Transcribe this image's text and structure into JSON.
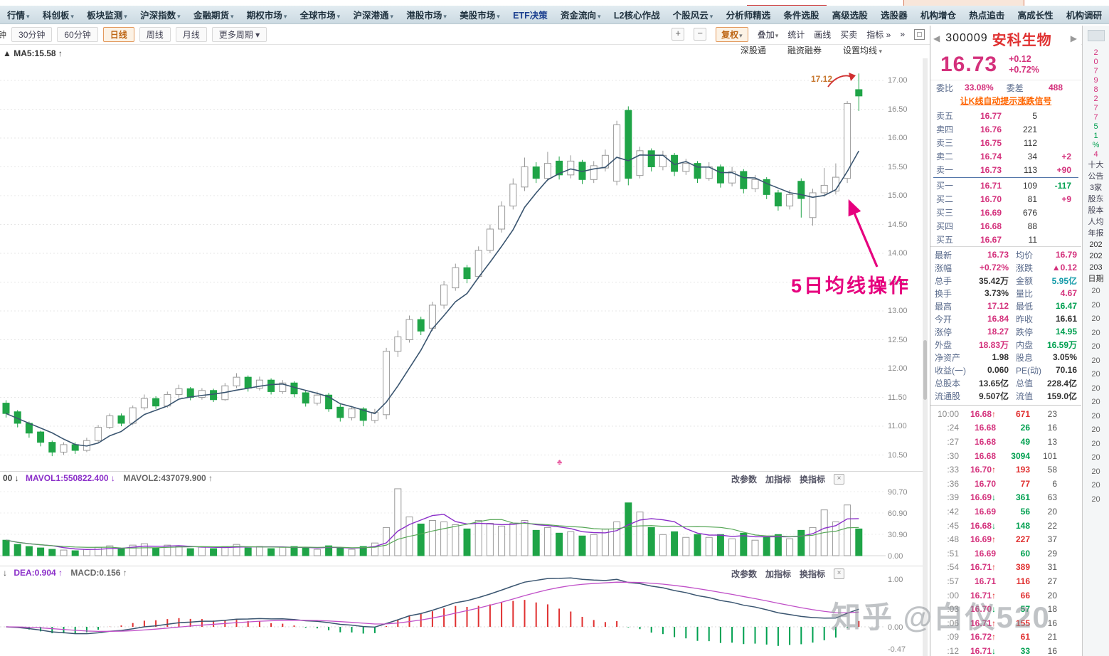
{
  "window": {
    "watermark": "知乎 @白仪520"
  },
  "menu_bar": {
    "items": [
      {
        "label": "行情",
        "arrow": true
      },
      {
        "label": "科创板",
        "arrow": true
      },
      {
        "label": "板块监测",
        "arrow": true
      },
      {
        "label": "沪深指数",
        "arrow": true
      },
      {
        "label": "金融期货",
        "arrow": true
      },
      {
        "label": "期权市场",
        "arrow": true
      },
      {
        "label": "全球市场",
        "arrow": true
      },
      {
        "label": "沪深港通",
        "arrow": true
      },
      {
        "label": "港股市场",
        "arrow": true
      },
      {
        "label": "美股市场",
        "arrow": true
      },
      {
        "label": "ETF决策",
        "arrow": false,
        "color": "#1b3f8f"
      },
      {
        "label": "资金流向",
        "arrow": true
      },
      {
        "label": "L2核心作战",
        "arrow": false
      },
      {
        "label": "个股风云",
        "arrow": true
      },
      {
        "label": "分析师精选",
        "arrow": false
      },
      {
        "label": "条件选股",
        "arrow": false
      },
      {
        "label": "高级选股",
        "arrow": false
      },
      {
        "label": "选股器",
        "arrow": false
      },
      {
        "label": "机构增仓",
        "arrow": false
      },
      {
        "label": "热点追击",
        "arrow": false
      },
      {
        "label": "高成长性",
        "arrow": false
      },
      {
        "label": "机构调研",
        "arrow": false
      }
    ]
  },
  "toolbar": {
    "fragment": "钟",
    "periods": [
      {
        "label": "30分钟",
        "active": false
      },
      {
        "label": "60分钟",
        "active": false
      },
      {
        "label": "日线",
        "active": true
      },
      {
        "label": "周线",
        "active": false
      },
      {
        "label": "月线",
        "active": false
      },
      {
        "label": "更多周期",
        "active": false,
        "arrow": true
      }
    ],
    "zoom_in": "+",
    "zoom_out": "−",
    "right_buttons": [
      {
        "label": "复权",
        "arrow": true,
        "active": true
      },
      {
        "label": "叠加",
        "arrow": true,
        "active": false
      },
      {
        "label": "统计",
        "active": false
      },
      {
        "label": "画线",
        "active": false
      },
      {
        "label": "买卖",
        "active": false
      },
      {
        "label": "指标 »",
        "active": false
      }
    ]
  },
  "chart_links": [
    "深股通",
    "融资融券",
    "设置均线"
  ],
  "main_chart": {
    "ma_label": "▲ MA5:15.58 ↑",
    "high_label": "17.12",
    "annotation": "5日均线操作",
    "marker": "♣",
    "price_top": 17.0,
    "price_bottom": 10.5,
    "y_ticks": [
      "17.00",
      "16.50",
      "16.00",
      "15.50",
      "15.00",
      "14.50",
      "14.00",
      "13.50",
      "13.00",
      "12.50",
      "12.00",
      "11.50",
      "11.00",
      "10.50"
    ],
    "candles": [
      [
        11.4,
        11.22,
        11.15,
        11.45,
        "g"
      ],
      [
        11.25,
        11.05,
        10.98,
        11.28,
        "g"
      ],
      [
        11.05,
        10.88,
        10.8,
        11.08,
        "g"
      ],
      [
        10.9,
        10.72,
        10.65,
        10.92,
        "g"
      ],
      [
        10.72,
        10.55,
        10.48,
        10.75,
        "g"
      ],
      [
        10.55,
        10.68,
        10.5,
        10.72,
        "w"
      ],
      [
        10.68,
        10.58,
        10.52,
        10.72,
        "g"
      ],
      [
        10.58,
        10.75,
        10.55,
        10.8,
        "w"
      ],
      [
        10.75,
        10.98,
        10.72,
        11.02,
        "w"
      ],
      [
        10.98,
        11.18,
        10.95,
        11.22,
        "w"
      ],
      [
        11.18,
        11.05,
        11.0,
        11.22,
        "g"
      ],
      [
        11.05,
        11.32,
        11.02,
        11.36,
        "w"
      ],
      [
        11.32,
        11.48,
        11.28,
        11.55,
        "w"
      ],
      [
        11.48,
        11.35,
        11.3,
        11.52,
        "g"
      ],
      [
        11.35,
        11.55,
        11.32,
        11.6,
        "w"
      ],
      [
        11.55,
        11.65,
        11.5,
        11.72,
        "w"
      ],
      [
        11.65,
        11.5,
        11.45,
        11.68,
        "g"
      ],
      [
        11.5,
        11.62,
        11.46,
        11.66,
        "w"
      ],
      [
        11.62,
        11.46,
        11.42,
        11.65,
        "g"
      ],
      [
        11.46,
        11.7,
        11.44,
        11.75,
        "w"
      ],
      [
        11.7,
        11.85,
        11.66,
        11.92,
        "w"
      ],
      [
        11.85,
        11.66,
        11.6,
        11.88,
        "g"
      ],
      [
        11.66,
        11.8,
        11.62,
        11.86,
        "w"
      ],
      [
        11.8,
        11.6,
        11.55,
        11.83,
        "g"
      ],
      [
        11.6,
        11.75,
        11.56,
        11.8,
        "w"
      ],
      [
        11.75,
        11.56,
        11.5,
        11.78,
        "g"
      ],
      [
        11.58,
        11.4,
        11.34,
        11.62,
        "g"
      ],
      [
        11.4,
        11.54,
        11.36,
        11.6,
        "w"
      ],
      [
        11.54,
        11.3,
        11.25,
        11.58,
        "g"
      ],
      [
        11.33,
        11.15,
        11.08,
        11.38,
        "g"
      ],
      [
        11.15,
        11.3,
        11.1,
        11.35,
        "w"
      ],
      [
        11.3,
        11.1,
        11.0,
        11.33,
        "g"
      ],
      [
        11.1,
        11.24,
        11.05,
        11.3,
        "w"
      ],
      [
        11.2,
        12.3,
        11.12,
        12.36,
        "w"
      ],
      [
        12.3,
        12.55,
        12.2,
        12.66,
        "w"
      ],
      [
        12.5,
        12.85,
        12.45,
        12.92,
        "w"
      ],
      [
        12.85,
        12.65,
        12.58,
        12.9,
        "g"
      ],
      [
        12.7,
        13.1,
        12.65,
        13.16,
        "w"
      ],
      [
        13.1,
        13.45,
        13.04,
        13.52,
        "w"
      ],
      [
        13.4,
        13.75,
        13.35,
        13.82,
        "w"
      ],
      [
        13.75,
        13.56,
        13.48,
        13.8,
        "g"
      ],
      [
        13.6,
        14.05,
        13.56,
        14.12,
        "w"
      ],
      [
        14.05,
        14.42,
        14.0,
        14.5,
        "w"
      ],
      [
        14.42,
        14.82,
        14.36,
        14.9,
        "w"
      ],
      [
        14.82,
        15.2,
        14.76,
        15.3,
        "w"
      ],
      [
        15.15,
        15.5,
        15.08,
        15.66,
        "w"
      ],
      [
        15.5,
        15.3,
        15.22,
        15.58,
        "g"
      ],
      [
        15.3,
        15.56,
        15.25,
        15.76,
        "w"
      ],
      [
        15.6,
        15.36,
        15.28,
        15.68,
        "g"
      ],
      [
        15.36,
        15.6,
        15.3,
        15.7,
        "w"
      ],
      [
        15.58,
        15.28,
        15.2,
        15.62,
        "g"
      ],
      [
        15.28,
        15.52,
        15.22,
        15.6,
        "w"
      ],
      [
        15.48,
        15.7,
        15.42,
        15.8,
        "w"
      ],
      [
        15.25,
        16.23,
        15.18,
        16.3,
        "w"
      ],
      [
        16.48,
        15.3,
        15.18,
        16.55,
        "g"
      ],
      [
        15.35,
        15.78,
        15.3,
        15.85,
        "w"
      ],
      [
        15.78,
        15.5,
        15.42,
        15.82,
        "g"
      ],
      [
        15.5,
        15.7,
        15.44,
        15.78,
        "w"
      ],
      [
        15.7,
        15.42,
        15.34,
        15.74,
        "g"
      ],
      [
        15.42,
        15.56,
        15.36,
        15.64,
        "w"
      ],
      [
        15.56,
        15.3,
        15.22,
        15.6,
        "g"
      ],
      [
        15.3,
        15.5,
        15.26,
        15.58,
        "w"
      ],
      [
        15.5,
        15.22,
        15.14,
        15.54,
        "g"
      ],
      [
        15.22,
        15.42,
        15.16,
        15.5,
        "w"
      ],
      [
        15.42,
        15.12,
        15.04,
        15.46,
        "g"
      ],
      [
        15.12,
        15.28,
        15.06,
        15.36,
        "w"
      ],
      [
        15.28,
        15.02,
        14.94,
        15.32,
        "g"
      ],
      [
        15.05,
        14.82,
        14.74,
        15.1,
        "g"
      ],
      [
        14.82,
        15.02,
        14.76,
        15.1,
        "w"
      ],
      [
        15.25,
        14.95,
        14.62,
        15.3,
        "g"
      ],
      [
        14.62,
        15.05,
        14.48,
        15.12,
        "w"
      ],
      [
        15.05,
        15.18,
        14.98,
        15.48,
        "w"
      ],
      [
        15.08,
        15.32,
        15.02,
        15.56,
        "w"
      ],
      [
        15.3,
        16.6,
        15.22,
        16.64,
        "w"
      ],
      [
        16.84,
        16.73,
        16.47,
        17.12,
        "g"
      ]
    ]
  },
  "volume_pane": {
    "prefix": "00 ↓",
    "mavol1": "MAVOL1:550822.400 ↓",
    "mavol2": "MAVOL2:437079.900 ↑",
    "controls": [
      "改参数",
      "加指标",
      "换指标"
    ],
    "close_icon": "×",
    "y_ticks": [
      "90.70",
      "60.90",
      "30.90",
      "0.00"
    ],
    "volumes": [
      22,
      16,
      13,
      11,
      9,
      8,
      7,
      9,
      12,
      14,
      10,
      15,
      17,
      11,
      15,
      13,
      10,
      12,
      10,
      13,
      16,
      11,
      13,
      10,
      12,
      13,
      11,
      9,
      14,
      11,
      9,
      13,
      18,
      40,
      95,
      55,
      45,
      50,
      48,
      44,
      38,
      50,
      46,
      42,
      46,
      50,
      36,
      40,
      32,
      34,
      28,
      30,
      38,
      48,
      75,
      62,
      40,
      30,
      34,
      26,
      30,
      26,
      30,
      24,
      32,
      22,
      26,
      30,
      24,
      36,
      40,
      65,
      48,
      72,
      38
    ]
  },
  "macd_pane": {
    "prefix": "↓",
    "dea_label": "DEA:0.904 ↑",
    "macd_label": "MACD:0.156 ↑",
    "controls": [
      "改参数",
      "加指标",
      "换指标"
    ],
    "close_icon": "×",
    "y_ticks": [
      "1.00",
      "0.00",
      "-0.47"
    ]
  },
  "quote_panel": {
    "prev_icon": "◀",
    "next_icon": "▶",
    "code": "300009",
    "name": "安科生物",
    "price": "16.73",
    "change": "+0.12",
    "change_pct": "+0.72%",
    "weibi_label": "委比",
    "weibi": "33.08%",
    "weicha_label": "委差",
    "weicha": "488",
    "signal_link": "让K线自动提示涨跌信号",
    "order_book": [
      {
        "label": "卖五",
        "price": "16.77",
        "vol": "5",
        "delta": "",
        "dc": ""
      },
      {
        "label": "卖四",
        "price": "16.76",
        "vol": "221",
        "delta": "",
        "dc": ""
      },
      {
        "label": "卖三",
        "price": "16.75",
        "vol": "112",
        "delta": "",
        "dc": ""
      },
      {
        "label": "卖二",
        "price": "16.74",
        "vol": "34",
        "delta": "+2",
        "dc": "m"
      },
      {
        "label": "卖一",
        "price": "16.73",
        "vol": "113",
        "delta": "+90",
        "dc": "m"
      },
      {
        "label": "买一",
        "price": "16.71",
        "vol": "109",
        "delta": "-117",
        "dc": "g"
      },
      {
        "label": "买二",
        "price": "16.70",
        "vol": "81",
        "delta": "+9",
        "dc": "m"
      },
      {
        "label": "买三",
        "price": "16.69",
        "vol": "676",
        "delta": "",
        "dc": ""
      },
      {
        "label": "买四",
        "price": "16.68",
        "vol": "88",
        "delta": "",
        "dc": ""
      },
      {
        "label": "买五",
        "price": "16.67",
        "vol": "11",
        "delta": "",
        "dc": ""
      }
    ],
    "stats": [
      [
        "最新",
        "16.73",
        "m",
        "均价",
        "16.79",
        "m"
      ],
      [
        "涨幅",
        "+0.72%",
        "m",
        "涨跌",
        "▲0.12",
        "m"
      ],
      [
        "总手",
        "35.42万",
        "k",
        "金额",
        "5.95亿",
        "t"
      ],
      [
        "换手",
        "3.73%",
        "k",
        "量比",
        "4.67",
        "m"
      ],
      [
        "最高",
        "17.12",
        "m",
        "最低",
        "16.47",
        "g"
      ],
      [
        "今开",
        "16.84",
        "m",
        "昨收",
        "16.61",
        "k"
      ],
      [
        "涨停",
        "18.27",
        "m",
        "跌停",
        "14.95",
        "g"
      ],
      [
        "外盘",
        "18.83万",
        "m",
        "内盘",
        "16.59万",
        "g"
      ],
      [
        "净资产",
        "1.98",
        "k",
        "股息",
        "3.05%",
        "k"
      ],
      [
        "收益(一)",
        "0.060",
        "k",
        "PE(动)",
        "70.16",
        "k"
      ],
      [
        "总股本",
        "13.65亿",
        "k",
        "总值",
        "228.4亿",
        "k"
      ],
      [
        "流通股",
        "9.507亿",
        "k",
        "流值",
        "159.0亿",
        "k"
      ]
    ],
    "ticks": [
      {
        "t": "10:00",
        "p": "16.68",
        "d": "↑",
        "v": "671",
        "vc": "r",
        "n": "23"
      },
      {
        "t": ":24",
        "p": "16.68",
        "d": "",
        "v": "26",
        "vc": "g",
        "n": "16"
      },
      {
        "t": ":27",
        "p": "16.68",
        "d": "",
        "v": "49",
        "vc": "g",
        "n": "13"
      },
      {
        "t": ":30",
        "p": "16.68",
        "d": "",
        "v": "3094",
        "vc": "g",
        "n": "101"
      },
      {
        "t": ":33",
        "p": "16.70",
        "d": "↑",
        "v": "193",
        "vc": "r",
        "n": "58"
      },
      {
        "t": ":36",
        "p": "16.70",
        "d": "",
        "v": "77",
        "vc": "r",
        "n": "6"
      },
      {
        "t": ":39",
        "p": "16.69",
        "d": "↓",
        "v": "361",
        "vc": "g",
        "n": "63"
      },
      {
        "t": ":42",
        "p": "16.69",
        "d": "",
        "v": "56",
        "vc": "g",
        "n": "20"
      },
      {
        "t": ":45",
        "p": "16.68",
        "d": "↓",
        "v": "148",
        "vc": "g",
        "n": "22"
      },
      {
        "t": ":48",
        "p": "16.69",
        "d": "↑",
        "v": "227",
        "vc": "r",
        "n": "37"
      },
      {
        "t": ":51",
        "p": "16.69",
        "d": "",
        "v": "60",
        "vc": "g",
        "n": "29"
      },
      {
        "t": ":54",
        "p": "16.71",
        "d": "↑",
        "v": "389",
        "vc": "r",
        "n": "31"
      },
      {
        "t": ":57",
        "p": "16.71",
        "d": "",
        "v": "116",
        "vc": "r",
        "n": "27"
      },
      {
        "t": ":00",
        "p": "16.71",
        "d": "↑",
        "v": "66",
        "vc": "r",
        "n": "20"
      },
      {
        "t": ":03",
        "p": "16.70",
        "d": "↓",
        "v": "57",
        "vc": "g",
        "n": "18"
      },
      {
        "t": ":06",
        "p": "16.71",
        "d": "↑",
        "v": "155",
        "vc": "r",
        "n": "16"
      },
      {
        "t": ":09",
        "p": "16.72",
        "d": "↑",
        "v": "61",
        "vc": "r",
        "n": "21"
      },
      {
        "t": ":12",
        "p": "16.71",
        "d": "↓",
        "v": "33",
        "vc": "g",
        "n": "16"
      }
    ]
  },
  "right_strip": {
    "digits": [
      [
        "2",
        "m"
      ],
      [
        "0",
        "m"
      ],
      [
        "7",
        "m"
      ],
      [
        "9",
        "m"
      ],
      [
        "8",
        "m"
      ],
      [
        "2",
        "m"
      ],
      [
        "7",
        "m"
      ],
      [
        "7",
        "m"
      ],
      [
        "5",
        "g"
      ],
      [
        "1",
        "g"
      ],
      [
        "%",
        "g"
      ],
      [
        "4",
        "m"
      ]
    ],
    "labels": [
      "十大",
      "公告",
      "3家",
      "股东",
      "股本",
      "人均",
      "年报"
    ],
    "dates": [
      "202",
      "202",
      "203",
      "日期"
    ],
    "repeat": "20",
    "repeat_count": 16
  },
  "colors": {
    "up_magenta": "#d4317c",
    "down_green": "#00a050",
    "candle_green": "#1fa447",
    "hollow_stroke": "#9a9a9a",
    "ma_line": "#3a5570",
    "annotation_pink": "#e6007e",
    "link_orange": "#ff6600"
  }
}
